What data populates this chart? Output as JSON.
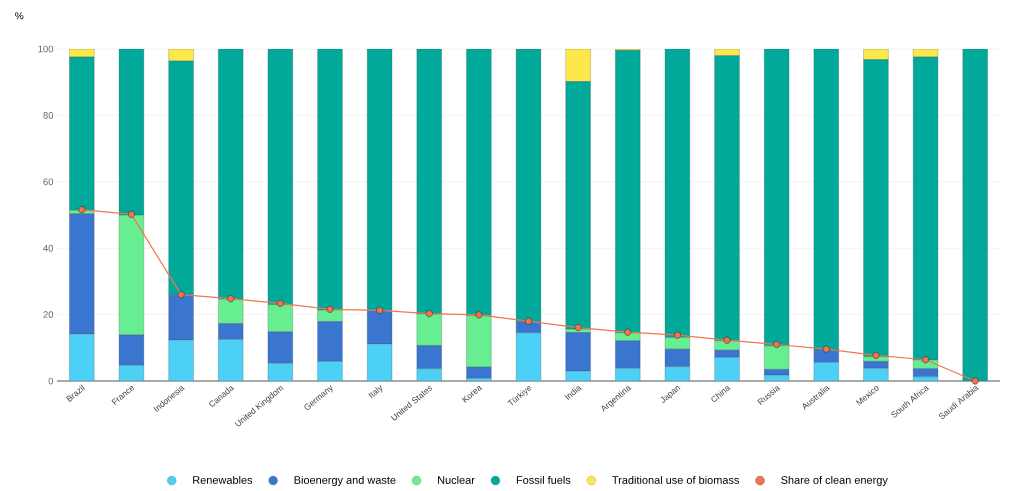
{
  "chart_data": {
    "type": "bar",
    "stacked": true,
    "ylabel": "%",
    "categories": [
      "Brazil",
      "France",
      "Indonesia",
      "Canada",
      "United Kingdom",
      "Germany",
      "Italy",
      "United States",
      "Korea",
      "Türkiye",
      "India",
      "Argentina",
      "Japan",
      "China",
      "Russia",
      "Australia",
      "Mexico",
      "South Africa",
      "Saudi Arabia"
    ],
    "series": [
      {
        "name": "Renewables",
        "color": "#4dd0f5",
        "values": [
          14.1,
          4.7,
          12.3,
          12.5,
          5.3,
          5.9,
          11.1,
          3.7,
          0.8,
          14.5,
          3.0,
          3.8,
          4.3,
          7.1,
          1.8,
          5.6,
          3.8,
          1.3,
          0
        ]
      },
      {
        "name": "Bioenergy and waste",
        "color": "#3a75d0",
        "values": [
          36.3,
          9.2,
          13.5,
          4.8,
          9.5,
          12.0,
          10.1,
          7.0,
          3.4,
          3.4,
          11.6,
          8.3,
          5.3,
          2.2,
          1.7,
          3.7,
          2.1,
          2.4,
          0
        ]
      },
      {
        "name": "Nuclear",
        "color": "#66ee90",
        "values": [
          1.0,
          36.0,
          0,
          7.3,
          8.2,
          3.4,
          0,
          9.5,
          15.5,
          0,
          1.0,
          2.4,
          3.5,
          2.8,
          7.1,
          0,
          1.4,
          2.6,
          0
        ]
      },
      {
        "name": "Fossil fuels",
        "color": "#00a99a",
        "values": [
          46.2,
          50.1,
          70.6,
          75.4,
          77.0,
          78.7,
          78.8,
          79.8,
          80.3,
          82.1,
          74.6,
          85.1,
          86.9,
          85.9,
          89.4,
          90.7,
          89.5,
          91.3,
          100
        ]
      },
      {
        "name": "Traditional use of biomass",
        "color": "#fde84b",
        "values": [
          2.4,
          0,
          3.6,
          0,
          0,
          0,
          0,
          0,
          0,
          0,
          9.8,
          0.4,
          0,
          2.0,
          0,
          0,
          3.2,
          2.4,
          0
        ]
      },
      {
        "name": "Share of clean energy",
        "type": "line",
        "marker": "circle",
        "color": "#f2744f",
        "values": [
          51.6,
          50.2,
          26.0,
          24.8,
          23.4,
          21.6,
          21.3,
          20.3,
          19.9,
          18.0,
          16.1,
          14.7,
          13.8,
          12.3,
          11.0,
          9.6,
          7.7,
          6.4,
          0
        ]
      }
    ],
    "ylim": [
      0,
      100
    ],
    "yticks": [
      0,
      20,
      40,
      60,
      80,
      100
    ],
    "grid": "y",
    "legend": "bottom"
  }
}
